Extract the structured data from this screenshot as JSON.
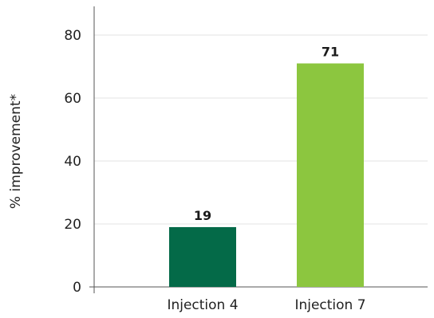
{
  "chart_data": {
    "type": "bar",
    "categories": [
      "Injection 4",
      "Injection 7"
    ],
    "values": [
      19,
      71
    ],
    "bar_colors": [
      "#046a48",
      "#8cc63f"
    ],
    "data_labels": [
      "19",
      "71"
    ],
    "title": "",
    "xlabel": "",
    "ylabel": "% improvement*",
    "ylim": [
      0,
      90
    ],
    "yticks": [
      0,
      20,
      40,
      60,
      80
    ],
    "ytick_labels": [
      "0",
      "20",
      "40",
      "60",
      "80"
    ],
    "grid": "horizontal",
    "gridline_color": "#e3e3e3",
    "axis_color": "#555555"
  }
}
